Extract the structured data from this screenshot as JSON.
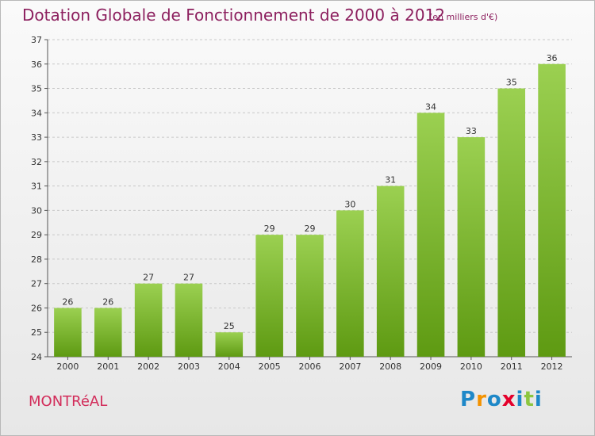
{
  "title": "Dotation Globale de Fonctionnement de 2000 à 2012",
  "subtitle": "(en milliers d'€)",
  "commune": "MONTRéAL",
  "logo": {
    "text": "Proxiti",
    "letters": [
      "P",
      "r",
      "o",
      "x",
      "i",
      "t",
      "i"
    ],
    "colors": [
      "#1e88c8",
      "#f39200",
      "#1e88c8",
      "#e4002b",
      "#1e88c8",
      "#8cc63f",
      "#1e88c8"
    ]
  },
  "colors": {
    "title": "#8c1f5e",
    "commune": "#d22c5a",
    "bar_top": "#9bd051",
    "bar_bottom": "#5e9a12",
    "grid": "#c8c8c8"
  },
  "chart_data": {
    "type": "bar",
    "categories": [
      "2000",
      "2001",
      "2002",
      "2003",
      "2004",
      "2005",
      "2006",
      "2007",
      "2008",
      "2009",
      "2010",
      "2011",
      "2012"
    ],
    "values": [
      26,
      26,
      27,
      27,
      25,
      29,
      29,
      30,
      31,
      34,
      33,
      35,
      36
    ],
    "title": "Dotation Globale de Fonctionnement de 2000 à 2012",
    "subtitle": "(en milliers d'€)",
    "xlabel": "",
    "ylabel": "",
    "ylim": [
      24,
      37
    ],
    "yticks": [
      24,
      25,
      26,
      27,
      28,
      29,
      30,
      31,
      32,
      33,
      34,
      35,
      36,
      37
    ],
    "grid": true,
    "legend": "none"
  }
}
